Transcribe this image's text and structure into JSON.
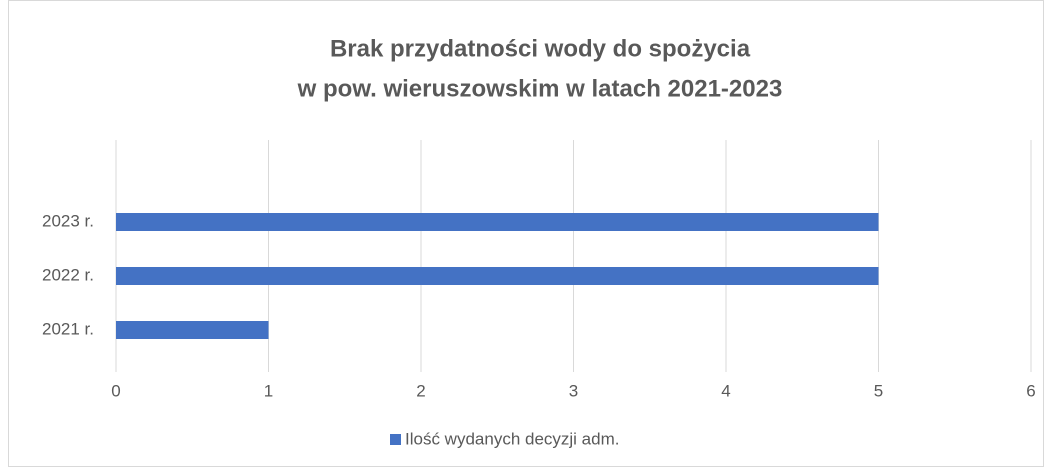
{
  "chart_data": {
    "type": "barh",
    "title": [
      "Brak przydatności wody do spożycia",
      "w pow. wieruszowskim w latach 2021-2023"
    ],
    "categories": [
      "2021 r.",
      "2022 r.",
      "2023 r."
    ],
    "series": [
      {
        "name": "Ilość wydanych decyzji adm.",
        "color": "#4472c4",
        "values": [
          1,
          5,
          5
        ]
      }
    ],
    "xlim": [
      0,
      6
    ],
    "xticks": [
      0,
      1,
      2,
      3,
      4,
      5,
      6
    ],
    "grid": true,
    "legend": "bottom"
  }
}
